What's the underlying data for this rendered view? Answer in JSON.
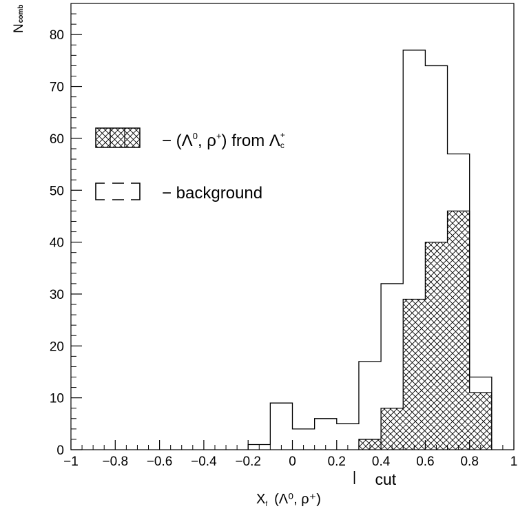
{
  "chart_data": {
    "type": "bar",
    "ylabel": "N",
    "ylabel_sub": "comb",
    "xlabel_var": "X",
    "xlabel_sub": "f",
    "xlabel_args": "(Λ⁰, ρ⁺)",
    "xlim": [
      -1,
      1
    ],
    "ylim": [
      0,
      86
    ],
    "x_ticks": [
      "−1",
      "−0.8",
      "−0.6",
      "−0.4",
      "−0.2",
      "0",
      "0.2",
      "0.4",
      "0.6",
      "0.8",
      "1"
    ],
    "x_tick_values": [
      -1,
      -0.8,
      -0.6,
      -0.4,
      -0.2,
      0,
      0.2,
      0.4,
      0.6,
      0.8,
      1
    ],
    "y_ticks": [
      "0",
      "10",
      "20",
      "30",
      "40",
      "50",
      "60",
      "70",
      "80"
    ],
    "y_tick_values": [
      0,
      10,
      20,
      30,
      40,
      50,
      60,
      70,
      80
    ],
    "bin_width": 0.1,
    "series": [
      {
        "name": "background",
        "style": "outline",
        "bin_low_edges": [
          -0.2,
          -0.1,
          0.0,
          0.1,
          0.2,
          0.3,
          0.4,
          0.5,
          0.6,
          0.7,
          0.8
        ],
        "values": [
          1,
          9,
          4,
          6,
          5,
          17,
          32,
          77,
          74,
          57,
          14
        ]
      },
      {
        "name": "(Λ⁰, ρ⁺) from Λc⁺",
        "style": "crosshatch",
        "bin_low_edges": [
          0.3,
          0.4,
          0.5,
          0.6,
          0.7,
          0.8
        ],
        "values": [
          2,
          8,
          29,
          40,
          46,
          11
        ]
      }
    ],
    "legend": {
      "placement": "upper-left",
      "signal_prefix": "− (Λ",
      "signal_sup1": "0",
      "signal_mid": ", ρ",
      "signal_sup2": "+",
      "signal_close": ") from Λ",
      "signal_lam_sub": "c",
      "signal_lam_sup": "+",
      "background_text": "− background"
    },
    "annotation": {
      "text": "cut",
      "x": 0.28
    },
    "grid": false
  }
}
